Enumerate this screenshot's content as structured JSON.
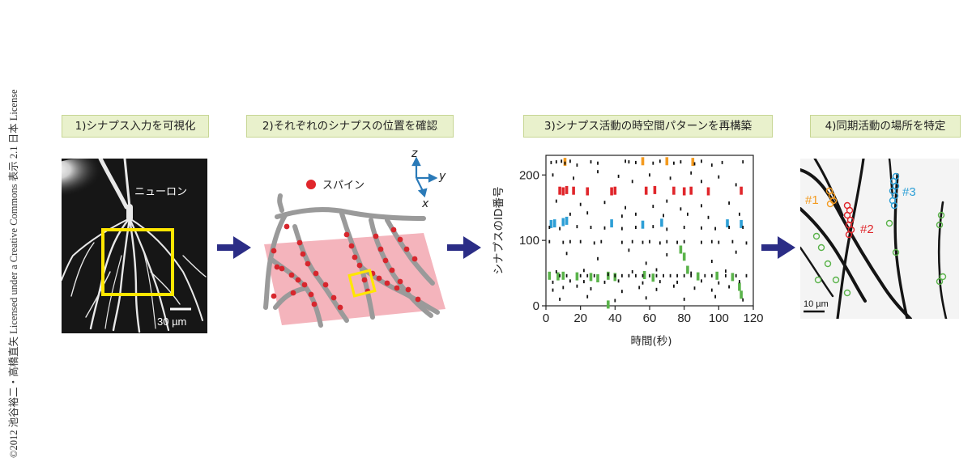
{
  "copyright": "©2012 池谷裕二・高橋直矢 Licensed under a Creative Commons 表示 2.1 日本 License",
  "steps": [
    {
      "label": "1)シナプス入力を可視化"
    },
    {
      "label": "2)それぞれのシナプスの位置を確認"
    },
    {
      "label": "3)シナプス活動の時空間パターンを再構築"
    },
    {
      "label": "4)同期活動の場所を特定"
    }
  ],
  "panel1": {
    "neuron_label": "ニューロン",
    "scale_label": "30 µm"
  },
  "panel2": {
    "legend_label": "スパイン",
    "axis_z": "z",
    "axis_y": "y",
    "axis_x": "x"
  },
  "panel4": {
    "scale_label": "10 µm",
    "cluster1": "#1",
    "cluster2": "#2",
    "cluster3": "#3"
  },
  "colors": {
    "accent_arrow": "#2b2d86",
    "label_bg": "#e9f1cc",
    "orange": "#f39a1e",
    "red": "#e0262b",
    "blue": "#2d9fd6",
    "green": "#5ab34a",
    "yellow": "#ffe600"
  },
  "chart_data": {
    "type": "scatter",
    "title": "",
    "xlabel": "時間(秒)",
    "ylabel": "シナプスのID番号",
    "xlim": [
      0,
      120
    ],
    "ylim": [
      0,
      230
    ],
    "xticks": [
      0,
      20,
      40,
      60,
      80,
      100,
      120
    ],
    "yticks": [
      0,
      100,
      200
    ],
    "grid": false,
    "series": [
      {
        "color": "orange",
        "points": [
          [
            11,
            220
          ],
          [
            56,
            221
          ],
          [
            70,
            221
          ],
          [
            85,
            220
          ]
        ]
      },
      {
        "color": "red",
        "points": [
          [
            8,
            176
          ],
          [
            10,
            175
          ],
          [
            12,
            177
          ],
          [
            16,
            176
          ],
          [
            24,
            175
          ],
          [
            38,
            175
          ],
          [
            40,
            176
          ],
          [
            58,
            176
          ],
          [
            63,
            177
          ],
          [
            74,
            176
          ],
          [
            80,
            175
          ],
          [
            84,
            176
          ],
          [
            94,
            175
          ],
          [
            113,
            176
          ]
        ]
      },
      {
        "color": "blue",
        "points": [
          [
            3,
            125
          ],
          [
            5,
            126
          ],
          [
            10,
            128
          ],
          [
            12,
            130
          ],
          [
            38,
            126
          ],
          [
            56,
            124
          ],
          [
            67,
            127
          ],
          [
            105,
            126
          ],
          [
            113,
            125
          ]
        ]
      },
      {
        "color": "green",
        "points": [
          [
            7,
            45
          ],
          [
            10,
            46
          ],
          [
            18,
            45
          ],
          [
            26,
            44
          ],
          [
            30,
            42
          ],
          [
            36,
            46
          ],
          [
            40,
            44
          ],
          [
            57,
            47
          ],
          [
            62,
            43
          ],
          [
            78,
            86
          ],
          [
            80,
            75
          ],
          [
            82,
            55
          ],
          [
            88,
            45
          ],
          [
            99,
            46
          ],
          [
            108,
            44
          ],
          [
            112,
            29
          ],
          [
            113,
            17
          ],
          [
            36,
            2
          ],
          [
            2,
            46
          ]
        ]
      },
      {
        "color": "black",
        "points": [
          [
            3,
            219
          ],
          [
            6,
            220
          ],
          [
            9,
            221
          ],
          [
            11,
            218
          ],
          [
            14,
            221
          ],
          [
            18,
            215
          ],
          [
            26,
            220
          ],
          [
            30,
            218
          ],
          [
            46,
            221
          ],
          [
            48,
            220
          ],
          [
            52,
            219
          ],
          [
            62,
            218
          ],
          [
            66,
            221
          ],
          [
            74,
            218
          ],
          [
            78,
            220
          ],
          [
            86,
            217
          ],
          [
            90,
            221
          ],
          [
            96,
            215
          ],
          [
            102,
            219
          ],
          [
            114,
            220
          ],
          [
            4,
            200
          ],
          [
            16,
            195
          ],
          [
            30,
            205
          ],
          [
            42,
            198
          ],
          [
            50,
            190
          ],
          [
            60,
            200
          ],
          [
            72,
            195
          ],
          [
            84,
            203
          ],
          [
            90,
            190
          ],
          [
            100,
            197
          ],
          [
            110,
            185
          ],
          [
            6,
            160
          ],
          [
            20,
            155
          ],
          [
            34,
            158
          ],
          [
            46,
            150
          ],
          [
            62,
            152
          ],
          [
            70,
            160
          ],
          [
            78,
            148
          ],
          [
            90,
            153
          ],
          [
            106,
            157
          ],
          [
            14,
            140
          ],
          [
            24,
            142
          ],
          [
            44,
            137
          ],
          [
            52,
            140
          ],
          [
            68,
            138
          ],
          [
            82,
            140
          ],
          [
            94,
            135
          ],
          [
            112,
            140
          ],
          [
            2,
            120
          ],
          [
            8,
            118
          ],
          [
            18,
            121
          ],
          [
            26,
            120
          ],
          [
            34,
            119
          ],
          [
            44,
            118
          ],
          [
            52,
            120
          ],
          [
            62,
            121
          ],
          [
            70,
            117
          ],
          [
            80,
            120
          ],
          [
            90,
            119
          ],
          [
            98,
            118
          ],
          [
            106,
            120
          ],
          [
            114,
            120
          ],
          [
            2,
            98
          ],
          [
            10,
            97
          ],
          [
            14,
            98
          ],
          [
            20,
            98
          ],
          [
            28,
            96
          ],
          [
            32,
            98
          ],
          [
            44,
            97
          ],
          [
            50,
            98
          ],
          [
            56,
            97
          ],
          [
            60,
            98
          ],
          [
            66,
            96
          ],
          [
            70,
            98
          ],
          [
            76,
            97
          ],
          [
            80,
            98
          ],
          [
            90,
            97
          ],
          [
            96,
            98
          ],
          [
            100,
            97
          ],
          [
            108,
            98
          ],
          [
            116,
            96
          ],
          [
            12,
            80
          ],
          [
            30,
            72
          ],
          [
            48,
            85
          ],
          [
            58,
            65
          ],
          [
            70,
            78
          ],
          [
            96,
            68
          ],
          [
            110,
            82
          ],
          [
            6,
            52
          ],
          [
            22,
            54
          ],
          [
            36,
            48
          ],
          [
            50,
            52
          ],
          [
            64,
            55
          ],
          [
            84,
            50
          ],
          [
            104,
            53
          ],
          [
            8,
            46
          ],
          [
            12,
            46
          ],
          [
            20,
            46
          ],
          [
            24,
            46
          ],
          [
            28,
            46
          ],
          [
            40,
            46
          ],
          [
            44,
            46
          ],
          [
            48,
            46
          ],
          [
            52,
            46
          ],
          [
            56,
            46
          ],
          [
            60,
            46
          ],
          [
            64,
            46
          ],
          [
            68,
            46
          ],
          [
            72,
            46
          ],
          [
            76,
            46
          ],
          [
            80,
            46
          ],
          [
            84,
            46
          ],
          [
            92,
            46
          ],
          [
            96,
            46
          ],
          [
            104,
            46
          ],
          [
            110,
            46
          ],
          [
            116,
            46
          ],
          [
            4,
            36
          ],
          [
            14,
            38
          ],
          [
            22,
            37
          ],
          [
            34,
            36
          ],
          [
            42,
            38
          ],
          [
            56,
            35
          ],
          [
            66,
            37
          ],
          [
            76,
            36
          ],
          [
            90,
            38
          ],
          [
            100,
            35
          ],
          [
            112,
            37
          ],
          [
            4,
            24
          ],
          [
            10,
            28
          ],
          [
            18,
            30
          ],
          [
            26,
            26
          ],
          [
            44,
            22
          ],
          [
            54,
            28
          ],
          [
            64,
            25
          ],
          [
            74,
            30
          ],
          [
            86,
            27
          ],
          [
            96,
            24
          ],
          [
            106,
            29
          ],
          [
            8,
            10
          ],
          [
            24,
            14
          ],
          [
            40,
            8
          ],
          [
            58,
            12
          ],
          [
            80,
            10
          ],
          [
            98,
            14
          ],
          [
            114,
            9
          ]
        ]
      }
    ]
  }
}
